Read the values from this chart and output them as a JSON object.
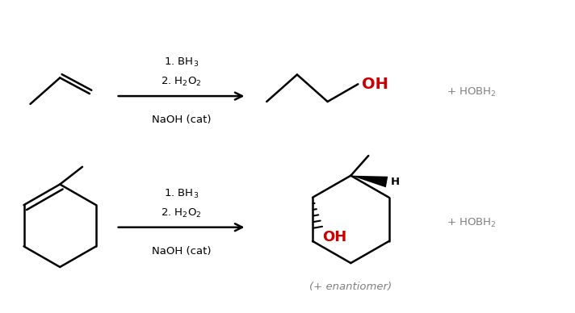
{
  "background_color": "#ffffff",
  "text_color": "#000000",
  "oh_color": "#cc0000",
  "gray_color": "#808080",
  "reaction1": {
    "reagents_line1": "1. BH$_3$",
    "reagents_line2": "2. H$_2$O$_2$",
    "reagents_line3": "NaOH (cat)",
    "byproduct": "+ HOBH$_2$"
  },
  "reaction2": {
    "reagents_line1": "1. BH$_3$",
    "reagents_line2": "2. H$_2$O$_2$",
    "reagents_line3": "NaOH (cat)",
    "byproduct": "+ HOBH$_2$",
    "footnote": "(+ enantiomer)"
  },
  "figsize": [
    7.12,
    3.88
  ],
  "dpi": 100
}
